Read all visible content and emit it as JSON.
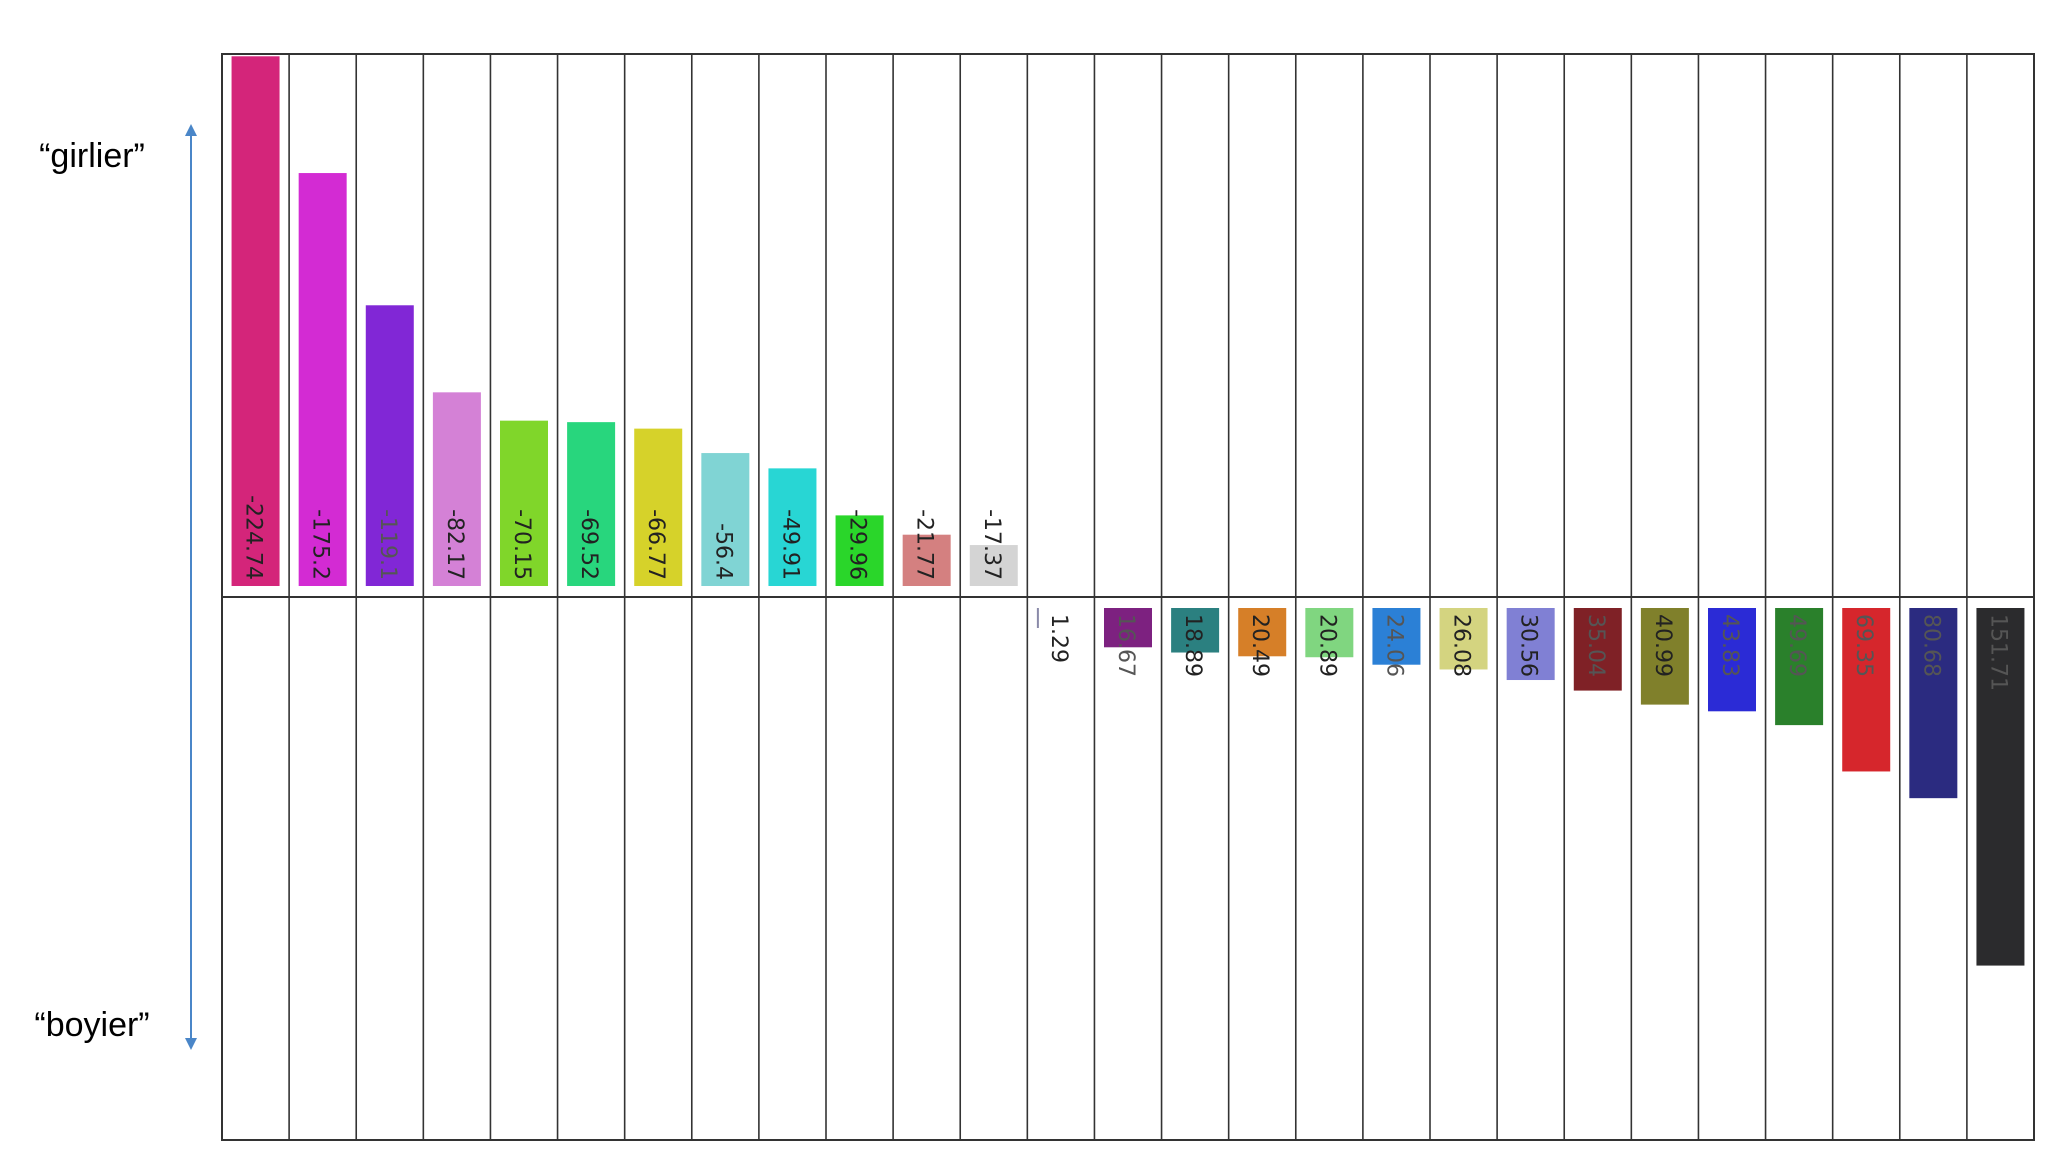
{
  "labels": {
    "top": "“girlier”",
    "bottom": "“boyier”"
  },
  "colors": {
    "arrow": "#4a86c8",
    "grid": "#333333",
    "label_text": "#222222",
    "label_text_dark": "#555555"
  },
  "chart_data": {
    "type": "bar",
    "orientation": "vertical",
    "grid": true,
    "value_axis": "inverted (negative values drawn upward)",
    "ylim": [
      -235,
      480
    ],
    "values": [
      -224.74,
      -175.2,
      -119.1,
      -82.17,
      -70.15,
      -69.52,
      -66.77,
      -56.4,
      -49.91,
      -29.96,
      -21.77,
      -17.37,
      1.29,
      16.67,
      18.89,
      20.49,
      20.89,
      24.06,
      26.08,
      30.56,
      35.04,
      40.99,
      43.83,
      49.69,
      69.35,
      80.68,
      151.71
    ],
    "data_labels": [
      "-224.74",
      "-175.2",
      "-119.1",
      "-82.17",
      "-70.15",
      "-69.52",
      "-66.77",
      "-56.4",
      "-49.91",
      "-29.96",
      "-21.77",
      "-17.37",
      "1.29",
      "16.67",
      "18.89",
      "20.49",
      "20.89",
      "24.06",
      "26.08",
      "30.56",
      "35.04",
      "40.99",
      "43.83",
      "49.69",
      "69.35",
      "80.68",
      "151.71"
    ],
    "colors": [
      "#d4257a",
      "#d32bd3",
      "#8127d6",
      "#d481d6",
      "#80d62a",
      "#28d67d",
      "#d6d22a",
      "#80d4d4",
      "#28d6d4",
      "#2ad62a",
      "#d48080",
      "#d4d4d4",
      "#ffffff",
      "#7d2180",
      "#2b8080",
      "#d67f28",
      "#80d680",
      "#2b80d6",
      "#d4d480",
      "#8080d4",
      "#7f2126",
      "#80802b",
      "#2b2bd6",
      "#2a802b",
      "#d6262c",
      "#2b2b80",
      "#2b2b2d"
    ]
  }
}
